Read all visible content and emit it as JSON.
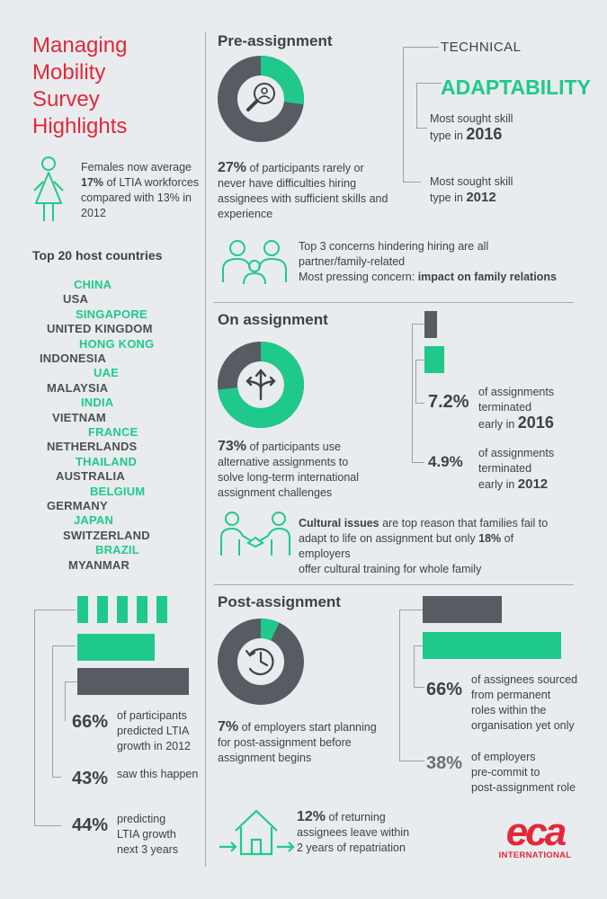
{
  "title": [
    "Managing",
    "Mobility",
    "Survey",
    "Highlights"
  ],
  "females": {
    "line1": "Females now average",
    "pct": "17%",
    "line2_rest": " of LTIA workforces",
    "line3": "compared with 13% in",
    "line4": "2012"
  },
  "top20": {
    "heading": "Top 20 host countries",
    "countries": [
      {
        "name": "CHINA",
        "color": "green"
      },
      {
        "name": "USA",
        "color": "dark"
      },
      {
        "name": "SINGAPORE",
        "color": "green"
      },
      {
        "name": "UNITED KINGDOM",
        "color": "dark"
      },
      {
        "name": "HONG KONG",
        "color": "green"
      },
      {
        "name": "INDONESIA",
        "color": "dark"
      },
      {
        "name": "UAE",
        "color": "green"
      },
      {
        "name": "MALAYSIA",
        "color": "dark"
      },
      {
        "name": "INDIA",
        "color": "green"
      },
      {
        "name": "VIETNAM",
        "color": "dark"
      },
      {
        "name": "FRANCE",
        "color": "green"
      },
      {
        "name": "NETHERLANDS",
        "color": "dark"
      },
      {
        "name": "THAILAND",
        "color": "green"
      },
      {
        "name": "AUSTRALIA",
        "color": "dark"
      },
      {
        "name": "BELGIUM",
        "color": "green"
      },
      {
        "name": "GERMANY",
        "color": "dark"
      },
      {
        "name": "JAPAN",
        "color": "green"
      },
      {
        "name": "SWITZERLAND",
        "color": "dark"
      },
      {
        "name": "BRAZIL",
        "color": "green"
      },
      {
        "name": "MYANMAR",
        "color": "dark"
      }
    ]
  },
  "growth": {
    "items": [
      {
        "pct": "66%",
        "lines": [
          "of participants",
          "predicted LTIA",
          "growth in 2012"
        ]
      },
      {
        "pct": "43%",
        "lines": [
          "saw this happen"
        ]
      },
      {
        "pct": "44%",
        "lines": [
          "predicting",
          "LTIA growth",
          "next 3 years"
        ]
      }
    ]
  },
  "pre": {
    "title": "Pre-assignment",
    "donut_pct": 27,
    "pct": "27%",
    "text_rest": " of participants rarely or",
    "lines": [
      "never have difficulties hiring",
      "assignees with sufficient skills and",
      "experience"
    ],
    "technical": "TECHNICAL",
    "adaptability": "ADAPTABILITY",
    "skill2016_line1": "Most sought skill",
    "skill2016_line2": "type in",
    "skill2016_year": "2016",
    "skill2012_line1": "Most sought skill",
    "skill2012_line2": "type in",
    "skill2012_year": "2012",
    "concerns_line1": "Top 3 concerns hindering hiring are all",
    "concerns_line2": "partner/family-related",
    "concerns_line3": "Most pressing concern: ",
    "concerns_bold": "impact on family relations"
  },
  "on": {
    "title": "On assignment",
    "donut_pct": 73,
    "pct": "73%",
    "text_rest": " of participants use",
    "lines": [
      "alternative assignments to",
      "solve long-term international",
      "assignment challenges"
    ],
    "term2016_pct": "7.2%",
    "term2016_lines": [
      "of assignments",
      "terminated",
      "early in"
    ],
    "term2016_year": "2016",
    "term2012_pct": "4.9%",
    "term2012_lines": [
      "of assignments",
      "terminated",
      "early in"
    ],
    "term2012_year": "2012",
    "cultural_bold": "Cultural issues",
    "cultural_rest": " are top reason that families fail to",
    "cultural_line2_a": "adapt to life on assignment but only ",
    "cultural_line2_pct": "18%",
    "cultural_line2_b": " of employers",
    "cultural_line3": "offer cultural training for whole family"
  },
  "post": {
    "title": "Post-assignment",
    "donut_pct": 7,
    "pct": "7%",
    "text_rest": " of employers start planning",
    "lines": [
      "for post-assignment before",
      "assignment begins"
    ],
    "sourced_pct": "66%",
    "sourced_lines": [
      "of assignees sourced",
      "from permanent",
      "roles within the",
      "organisation yet only"
    ],
    "precommit_pct": "38%",
    "precommit_lines": [
      "of employers",
      "pre-commit to",
      "post-assignment role"
    ],
    "return_pct": "12%",
    "return_rest": " of returning",
    "return_lines": [
      "assignees leave within",
      "2 years of repatriation"
    ]
  },
  "logo": {
    "mark": "eca",
    "sub": "INTERNATIONAL"
  },
  "colors": {
    "green": "#1fc98c",
    "dark": "#565c62",
    "red": "#e2283a",
    "bg": "#e8ecee"
  }
}
